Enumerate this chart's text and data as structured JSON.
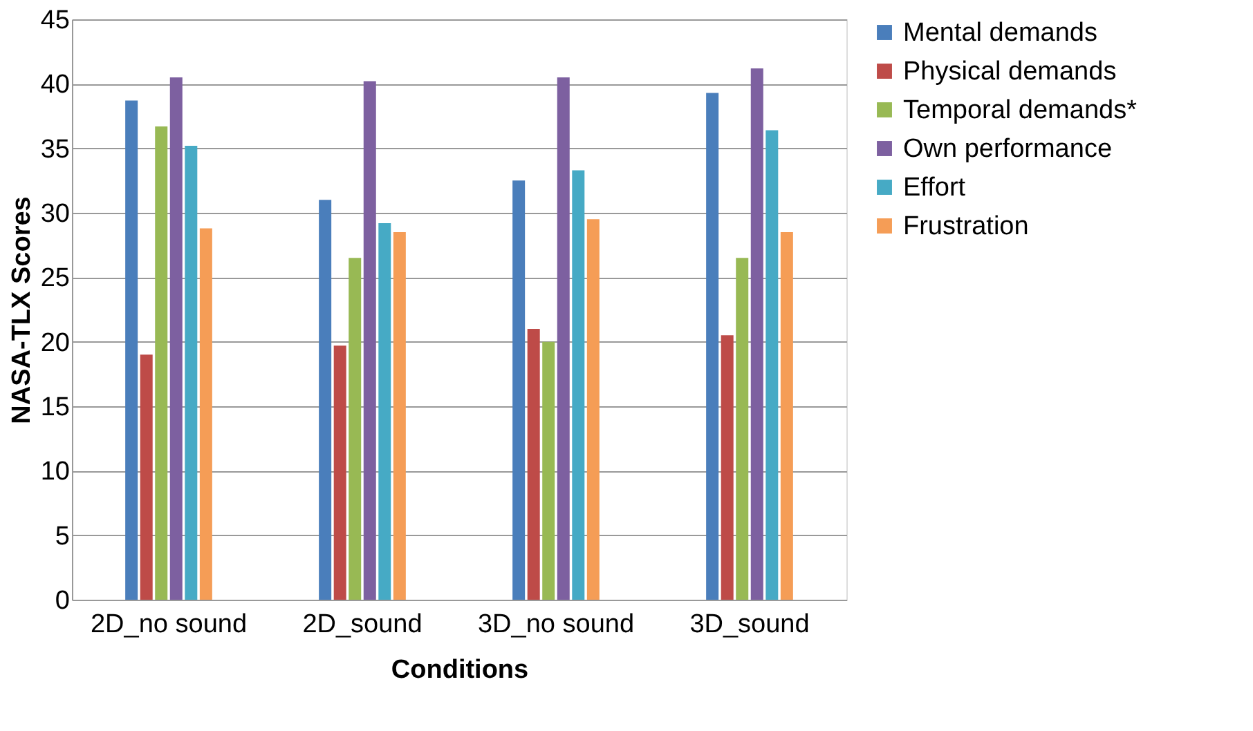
{
  "chart_data": {
    "type": "bar",
    "xlabel": "Conditions",
    "ylabel": "NASA-TLX Scores",
    "categories": [
      "2D_no sound",
      "2D_sound",
      "3D_no sound",
      "3D_sound"
    ],
    "series": [
      {
        "name": "Mental demands",
        "color": "#4a7ebb",
        "values": [
          38.7,
          31.0,
          32.5,
          39.3
        ]
      },
      {
        "name": "Physical demands",
        "color": "#be4b48",
        "values": [
          19.0,
          19.7,
          21.0,
          20.5
        ]
      },
      {
        "name": "Temporal demands*",
        "color": "#98b954",
        "values": [
          36.7,
          26.5,
          20.0,
          26.5
        ]
      },
      {
        "name": "Own performance",
        "color": "#7d60a0",
        "values": [
          40.5,
          40.2,
          40.5,
          41.2
        ]
      },
      {
        "name": "Effort",
        "color": "#46aac5",
        "values": [
          35.2,
          29.2,
          33.3,
          36.4
        ]
      },
      {
        "name": "Frustration",
        "color": "#f59d56",
        "values": [
          28.8,
          28.5,
          29.5,
          28.5
        ]
      }
    ],
    "ylim": [
      0,
      45
    ],
    "yticks": [
      0,
      5,
      10,
      15,
      20,
      25,
      30,
      35,
      40,
      45
    ],
    "grid": "y",
    "legend": "right"
  }
}
